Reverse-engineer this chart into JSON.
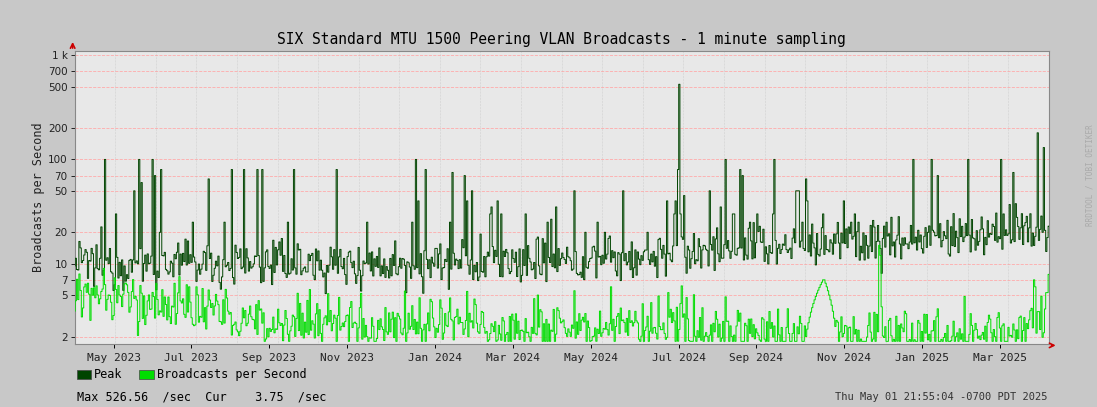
{
  "title": "SIX Standard MTU 1500 Peering VLAN Broadcasts - 1 minute sampling",
  "ylabel": "Broadcasts per Second",
  "xlabel_dates": [
    "May 2023",
    "Jul 2023",
    "Sep 2023",
    "Nov 2023",
    "Jan 2024",
    "Mar 2024",
    "May 2024",
    "Jul 2024",
    "Sep 2024",
    "Nov 2024",
    "Jan 2025",
    "Mar 2025"
  ],
  "ylog_ticks": [
    2,
    5,
    7,
    10,
    20,
    50,
    70,
    100,
    200,
    500,
    700,
    1000
  ],
  "ylog_labels": [
    "2",
    "5",
    "7",
    "10",
    "20",
    "50",
    "70",
    "100",
    "200",
    "500",
    "700",
    "1 k"
  ],
  "ylim_log": [
    1.7,
    1100
  ],
  "plot_bg": "#e8e8e8",
  "fig_bg": "#c8c8c8",
  "peak_color": "#004400",
  "avg_color": "#00dd00",
  "grid_h_color": "#ffaaaa",
  "grid_v_color": "#cccccc",
  "title_color": "#000000",
  "right_label": "RRDTOOL / TOBI OETIKER",
  "legend_peak_label": "Peak",
  "legend_avg_label": "Broadcasts per Second",
  "stats_text": "Max 526.56  /sec  Cur    3.75  /sec",
  "timestamp_text": "Thu May 01 21:55:04 -0700 PDT 2025",
  "arrow_color": "#cc0000"
}
